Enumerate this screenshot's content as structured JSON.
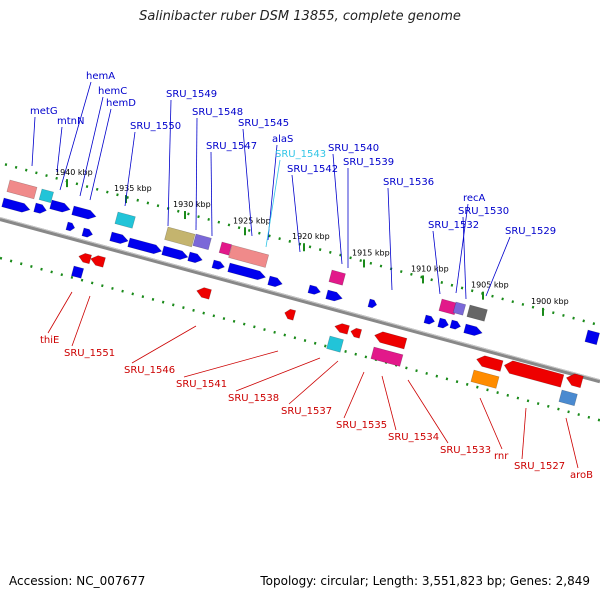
{
  "title": "Salinibacter ruber DSM 13855, complete genome",
  "footer": {
    "accession": "Accession: NC_007677",
    "summary": "Topology: circular; Length: 3,551,823 bp; Genes: 2,849"
  },
  "colors": {
    "forward_label": "#0000cc",
    "reverse_label": "#cc0000",
    "highlight_label": "#33c6e6",
    "backbone": "#888888",
    "tick": "#1a8a1a"
  },
  "scale_ticks": [
    "1940 kbp",
    "1935 kbp",
    "1930 kbp",
    "1925 kbp",
    "1920 kbp",
    "1915 kbp",
    "1910 kbp",
    "1905 kbp",
    "1900 kbp"
  ],
  "forward_genes": [
    "metG",
    "mtnN",
    "hemA",
    "hemC",
    "hemD",
    "SRU_1550",
    "SRU_1549",
    "SRU_1548",
    "SRU_1547",
    "SRU_1545",
    "alaS",
    "SRU_1543",
    "SRU_1542",
    "SRU_1540",
    "SRU_1539",
    "SRU_1536",
    "SRU_1532",
    "recA",
    "SRU_1530",
    "SRU_1529"
  ],
  "reverse_genes": [
    "thiE",
    "SRU_1551",
    "SRU_1546",
    "SRU_1541",
    "SRU_1538",
    "SRU_1537",
    "SRU_1535",
    "SRU_1534",
    "SRU_1533",
    "rnr",
    "SRU_1527",
    "aroB"
  ]
}
